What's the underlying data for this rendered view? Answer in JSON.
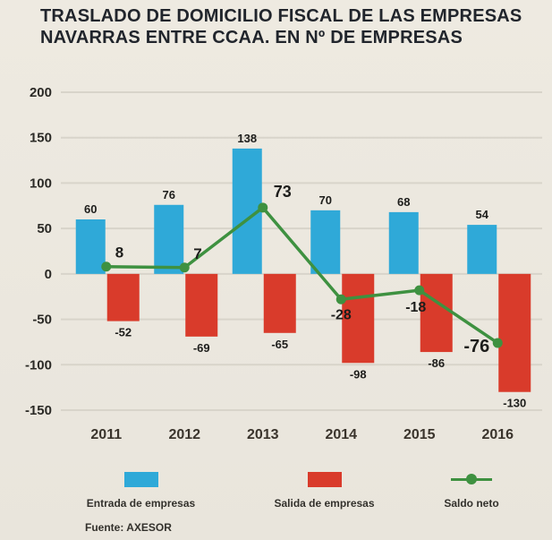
{
  "title": "TRASLADO DE DOMICILIO FISCAL DE LAS EMPRESAS NAVARRAS ENTRE CCAA. EN Nº DE EMPRESAS",
  "source": "Fuente: AXESOR",
  "legend": [
    {
      "label": "Entrada de empresas",
      "type": "bar",
      "color": "#2fa9d8"
    },
    {
      "label": "Salida de empresas",
      "type": "bar",
      "color": "#d93b2b"
    },
    {
      "label": "Saldo neto",
      "type": "line",
      "color": "#3e9140"
    }
  ],
  "colors": {
    "background": "#ece8df",
    "grid": "#d8d4ca",
    "title_text": "#21252c",
    "axis_text": "#2b2a26",
    "value_text": "#1d1d1b"
  },
  "chart_data": {
    "type": "bar",
    "subtype": "bar+line combo",
    "title": "TRASLADO DE DOMICILIO FISCAL DE LAS EMPRESAS NAVARRAS ENTRE CCAA. EN Nº DE EMPRESAS",
    "categories": [
      "2011",
      "2012",
      "2013",
      "2014",
      "2015",
      "2016"
    ],
    "series": [
      {
        "name": "Entrada de empresas",
        "type": "bar",
        "color": "#2fa9d8",
        "values": [
          60,
          76,
          138,
          70,
          68,
          54
        ]
      },
      {
        "name": "Salida de empresas",
        "type": "bar",
        "color": "#d93b2b",
        "values": [
          -52,
          -69,
          -65,
          -98,
          -86,
          -130
        ]
      },
      {
        "name": "Saldo neto",
        "type": "line",
        "color": "#3e9140",
        "values": [
          8,
          7,
          73,
          -28,
          -18,
          -76
        ]
      }
    ],
    "xlabel": "",
    "ylabel": "",
    "ylim": [
      -150,
      200
    ],
    "yticks": [
      200,
      150,
      100,
      50,
      0,
      -50,
      -100,
      -150
    ],
    "grid": true,
    "legend_position": "bottom",
    "source": "Fuente: AXESOR"
  }
}
